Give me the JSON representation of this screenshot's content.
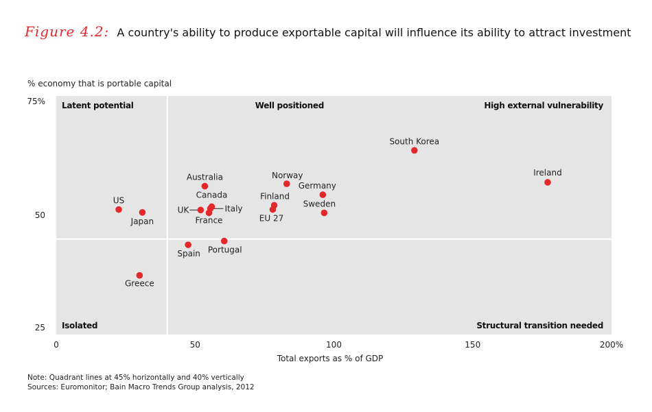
{
  "figure": {
    "label": "Figure 4.2:",
    "title": "A country's ability to produce exportable capital will influence its ability to attract investment"
  },
  "chart_data": {
    "type": "scatter",
    "title": "A country's ability to produce exportable capital will influence its ability to attract investment",
    "xlabel": "Total exports as % of GDP",
    "ylabel": "% economy that is portable capital",
    "xlim": [
      0,
      200
    ],
    "ylim": [
      25,
      75
    ],
    "x_ticks": [
      {
        "value": 0,
        "label": "0"
      },
      {
        "value": 50,
        "label": "50"
      },
      {
        "value": 100,
        "label": "100"
      },
      {
        "value": 150,
        "label": "150"
      },
      {
        "value": 200,
        "label": "200%"
      }
    ],
    "y_ticks": [
      {
        "value": 75,
        "label": "75%"
      },
      {
        "value": 50,
        "label": "50"
      },
      {
        "value": 25,
        "label": "25"
      }
    ],
    "quadrant_lines": {
      "x": 40,
      "y": 45
    },
    "quadrants": {
      "top_left": "Latent potential",
      "top_middle": "Well positioned",
      "top_right": "High external vulnerability",
      "bottom_left": "Isolated",
      "bottom_right": "Structural transition needed"
    },
    "points": [
      {
        "name": "US",
        "x": 22.5,
        "y": 51.2
      },
      {
        "name": "Japan",
        "x": 31,
        "y": 50.6
      },
      {
        "name": "Greece",
        "x": 30,
        "y": 37.4
      },
      {
        "name": "Australia",
        "x": 53.5,
        "y": 56.1
      },
      {
        "name": "Canada",
        "x": 56,
        "y": 51.8
      },
      {
        "name": "UK",
        "x": 52,
        "y": 51.1
      },
      {
        "name": "Italy",
        "x": 55.5,
        "y": 51.4
      },
      {
        "name": "France",
        "x": 55,
        "y": 50.5
      },
      {
        "name": "Spain",
        "x": 47.5,
        "y": 43.8
      },
      {
        "name": "Portugal",
        "x": 60.5,
        "y": 44.6
      },
      {
        "name": "Norway",
        "x": 83,
        "y": 56.6
      },
      {
        "name": "Finland",
        "x": 78.5,
        "y": 52.1
      },
      {
        "name": "EU 27",
        "x": 78,
        "y": 51.2
      },
      {
        "name": "Germany",
        "x": 96,
        "y": 54.3
      },
      {
        "name": "Sweden",
        "x": 96.5,
        "y": 50.5
      },
      {
        "name": "South Korea",
        "x": 129,
        "y": 63.6
      },
      {
        "name": "Ireland",
        "x": 177,
        "y": 56.9
      }
    ],
    "colors": {
      "background": "#e5e5e5",
      "grid": "#ffffff",
      "point": "#e3282b"
    }
  },
  "notes": {
    "line1": "Note: Quadrant lines at 45% horizontally and 40% vertically",
    "line2": "Sources: Euromonitor; Bain Macro Trends Group analysis, 2012"
  }
}
